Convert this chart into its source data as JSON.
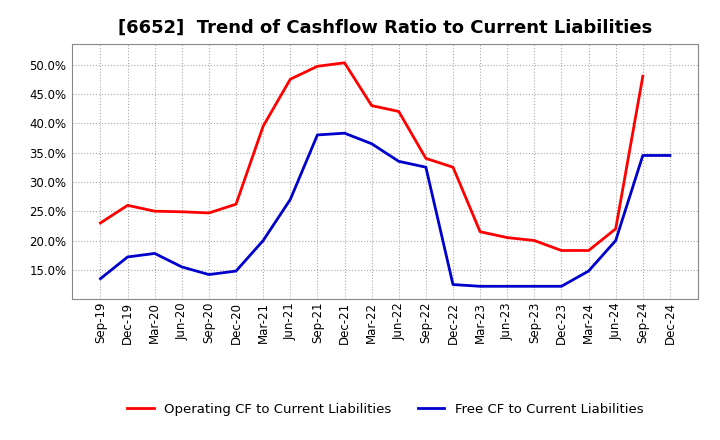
{
  "title": "[6652]  Trend of Cashflow Ratio to Current Liabilities",
  "x_labels": [
    "Sep-19",
    "Dec-19",
    "Mar-20",
    "Jun-20",
    "Sep-20",
    "Dec-20",
    "Mar-21",
    "Jun-21",
    "Sep-21",
    "Dec-21",
    "Mar-22",
    "Jun-22",
    "Sep-22",
    "Dec-22",
    "Mar-23",
    "Jun-23",
    "Sep-23",
    "Dec-23",
    "Mar-24",
    "Jun-24",
    "Sep-24",
    "Dec-24"
  ],
  "operating_cf": [
    0.23,
    0.26,
    0.25,
    0.249,
    0.247,
    0.262,
    0.395,
    0.475,
    0.497,
    0.503,
    0.43,
    0.42,
    0.34,
    0.325,
    0.215,
    0.205,
    0.2,
    0.183,
    0.183,
    0.22,
    0.48,
    null
  ],
  "free_cf": [
    0.135,
    0.172,
    0.178,
    0.155,
    0.142,
    0.148,
    0.2,
    0.27,
    0.38,
    0.383,
    0.365,
    0.335,
    0.325,
    0.125,
    0.122,
    0.122,
    0.122,
    0.122,
    0.148,
    0.2,
    0.345,
    0.345
  ],
  "operating_color": "#FF0000",
  "free_color": "#0000CC",
  "background_color": "#FFFFFF",
  "plot_bg_color": "#FFFFFF",
  "grid_color": "#AAAAAA",
  "ylim": [
    0.1,
    0.535
  ],
  "yticks": [
    0.15,
    0.2,
    0.25,
    0.3,
    0.35,
    0.4,
    0.45,
    0.5
  ],
  "legend_operating": "Operating CF to Current Liabilities",
  "legend_free": "Free CF to Current Liabilities",
  "line_width": 2.0,
  "title_fontsize": 13,
  "tick_fontsize": 8.5,
  "legend_fontsize": 9.5
}
